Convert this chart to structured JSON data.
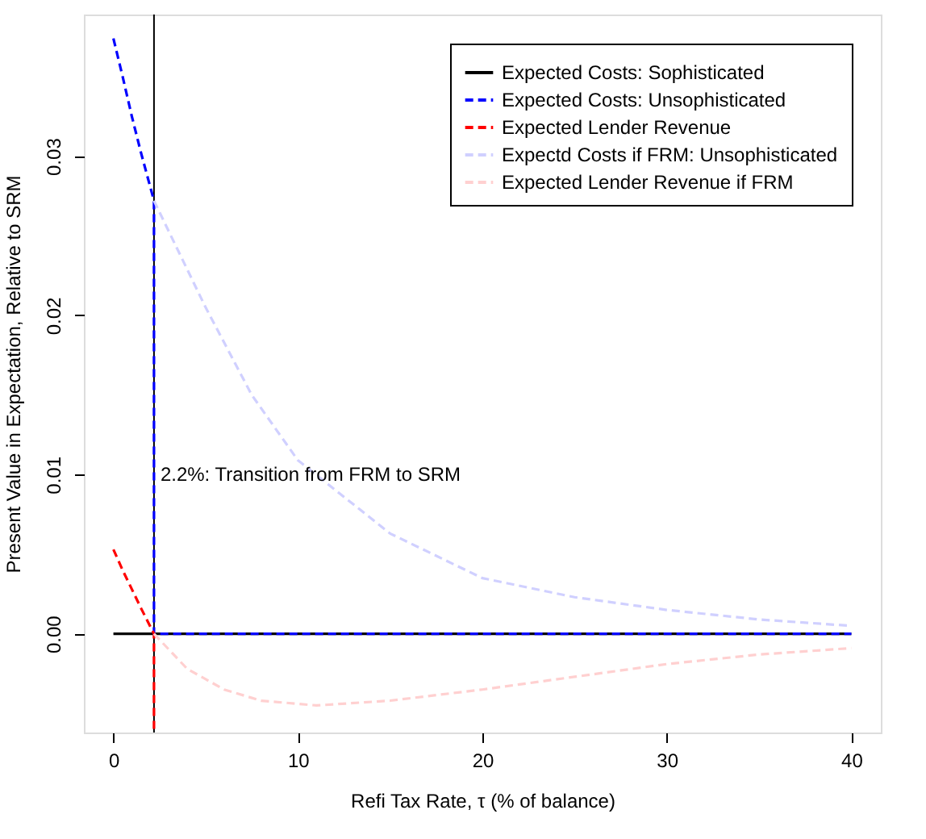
{
  "chart_data": {
    "type": "line",
    "xlabel": "Refi Tax Rate, τ (% of balance)",
    "ylabel": "Present Value in Expectation, Relative to SRM",
    "xlim": [
      -1.6,
      41.6
    ],
    "ylim": [
      -0.0062,
      0.0389
    ],
    "xticks": [
      0,
      10,
      20,
      30,
      40
    ],
    "yticks": [
      {
        "value": 0,
        "label": "0.00"
      },
      {
        "value": 0.01,
        "label": "0.01"
      },
      {
        "value": 0.02,
        "label": "0.02"
      },
      {
        "value": 0.03,
        "label": "0.03"
      }
    ],
    "grid": false,
    "legend": "top right",
    "series": [
      {
        "name": "Expected Costs: Sophisticated",
        "color": "#000000",
        "line_style": "solid",
        "x": [
          0,
          40
        ],
        "values": [
          0,
          0
        ]
      },
      {
        "name": "Expected Costs: Unsophisticated",
        "color": "#0000ff",
        "line_style": "dashed",
        "x": [
          0,
          0.5,
          1,
          1.5,
          2.2,
          2.2,
          40
        ],
        "values": [
          0.0374,
          0.035,
          0.0325,
          0.0302,
          0.0272,
          0,
          0
        ]
      },
      {
        "name": "Expected Lender Revenue",
        "color": "#ff0000",
        "line_style": "dashed",
        "x": [
          0,
          0.5,
          1,
          1.5,
          2.2,
          2.2
        ],
        "values": [
          0.0053,
          0.004,
          0.0028,
          0.0016,
          0,
          -0.0062
        ]
      },
      {
        "name": "Expectd Costs if FRM: Unsophisticated",
        "color": "#d0d0ff",
        "line_style": "dashed",
        "x": [
          2.2,
          5,
          7.5,
          10,
          15,
          20,
          25,
          30,
          35,
          40
        ],
        "values": [
          0.0272,
          0.0205,
          0.015,
          0.0109,
          0.0063,
          0.0035,
          0.0023,
          0.0015,
          0.0009,
          0.0005
        ]
      },
      {
        "name": "Expected Lender Revenue if FRM",
        "color": "#ffd0d0",
        "line_style": "dashed",
        "x": [
          2.2,
          4,
          6,
          8,
          11,
          15,
          20,
          25,
          30,
          35,
          40
        ],
        "values": [
          0,
          -0.0022,
          -0.0035,
          -0.0042,
          -0.0045,
          -0.0042,
          -0.0035,
          -0.0027,
          -0.0019,
          -0.0013,
          -0.0009
        ]
      }
    ],
    "ref_lines": [
      {
        "axis": "x",
        "value": 2.2,
        "color": "#000000",
        "line_style": "solid"
      }
    ],
    "annotations": [
      {
        "text": "2.2%: Transition from FRM to SRM",
        "x": 2.2,
        "y": 0.01
      }
    ]
  }
}
